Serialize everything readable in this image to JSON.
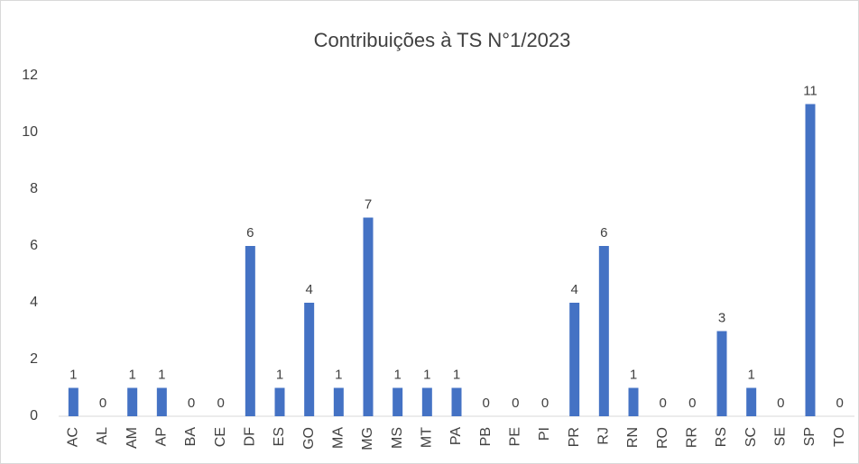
{
  "chart_data": {
    "type": "bar",
    "title": "Contribuições à TS N°1/2023",
    "categories": [
      "AC",
      "AL",
      "AM",
      "AP",
      "BA",
      "CE",
      "DF",
      "ES",
      "GO",
      "MA",
      "MG",
      "MS",
      "MT",
      "PA",
      "PB",
      "PE",
      "PI",
      "PR",
      "RJ",
      "RN",
      "RO",
      "RR",
      "RS",
      "SC",
      "SE",
      "SP",
      "TO"
    ],
    "values": [
      1,
      0,
      1,
      1,
      0,
      0,
      6,
      1,
      4,
      1,
      7,
      1,
      1,
      1,
      0,
      0,
      0,
      4,
      6,
      1,
      0,
      0,
      3,
      1,
      0,
      11,
      0
    ],
    "color": "#4472c4",
    "ylim": [
      0,
      12
    ],
    "yticks": [
      0,
      2,
      4,
      6,
      8,
      10,
      12
    ],
    "grid": false,
    "data_labels": true
  }
}
